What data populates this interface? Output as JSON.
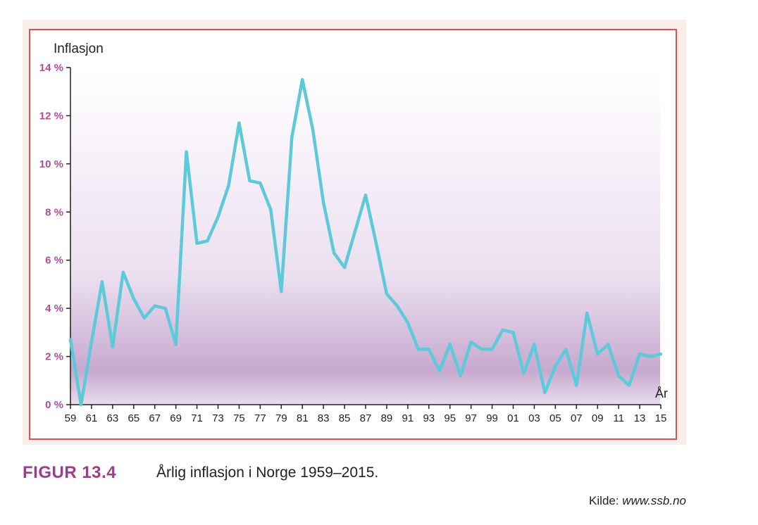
{
  "figure": {
    "label": "FIGUR 13.4",
    "caption": "Årlig inflasjon i Norge 1959–2015.",
    "source_prefix": "Kilde: ",
    "source_url": "www.ssb.no"
  },
  "colors": {
    "line": "#5ec9d9",
    "frame_border": "#d9534f",
    "frame_bg": "#fbeeea",
    "gradient_top": "#ffffff",
    "gradient_bottom": "#c7a9cf",
    "ytick": "#b04b9c",
    "figure_label": "#9b3f8c"
  },
  "chart_data": {
    "type": "line",
    "title": "",
    "ylabel": "Inflasjon",
    "xlabel": "År",
    "ylim": [
      0,
      14
    ],
    "xlim": [
      1959,
      2015
    ],
    "grid": false,
    "yticks": [
      0,
      2,
      4,
      6,
      8,
      10,
      12,
      14
    ],
    "ytick_labels": [
      "0 %",
      "2 %",
      "4 %",
      "6 %",
      "8 %",
      "10 %",
      "12 %",
      "14 %"
    ],
    "xtick_years": [
      1959,
      1961,
      1963,
      1965,
      1967,
      1969,
      1971,
      1973,
      1975,
      1977,
      1979,
      1981,
      1983,
      1985,
      1987,
      1989,
      1991,
      1993,
      1995,
      1997,
      1999,
      2001,
      2003,
      2005,
      2007,
      2009,
      2011,
      2013,
      2015
    ],
    "xtick_labels": [
      "59",
      "61",
      "63",
      "65",
      "67",
      "69",
      "71",
      "73",
      "75",
      "77",
      "79",
      "81",
      "83",
      "85",
      "87",
      "89",
      "91",
      "93",
      "95",
      "97",
      "99",
      "01",
      "03",
      "05",
      "07",
      "09",
      "11",
      "13",
      "15"
    ],
    "series": [
      {
        "x": [
          1959,
          1960,
          1961,
          1962,
          1963,
          1964,
          1965,
          1966,
          1967,
          1968,
          1969,
          1970,
          1971,
          1972,
          1973,
          1974,
          1975,
          1976,
          1977,
          1978,
          1979,
          1980,
          1981,
          1982,
          1983,
          1984,
          1985,
          1986,
          1987,
          1988,
          1989,
          1990,
          1991,
          1992,
          1993,
          1994,
          1995,
          1996,
          1997,
          1998,
          1999,
          2000,
          2001,
          2002,
          2003,
          2004,
          2005,
          2006,
          2007,
          2008,
          2009,
          2010,
          2011,
          2012,
          2013,
          2014,
          2015
        ],
        "values": [
          2.7,
          0.0,
          2.6,
          5.1,
          2.4,
          5.5,
          4.4,
          3.6,
          4.1,
          4.0,
          2.5,
          10.5,
          6.7,
          6.8,
          7.8,
          9.1,
          11.7,
          9.3,
          9.2,
          8.1,
          4.7,
          11.1,
          13.5,
          11.4,
          8.4,
          6.3,
          5.7,
          7.2,
          8.7,
          6.7,
          4.6,
          4.1,
          3.4,
          2.3,
          2.3,
          1.4,
          2.5,
          1.2,
          2.6,
          2.3,
          2.3,
          3.1,
          3.0,
          1.3,
          2.5,
          0.5,
          1.6,
          2.3,
          0.8,
          3.8,
          2.1,
          2.5,
          1.2,
          0.8,
          2.1,
          2.0,
          2.1
        ]
      }
    ]
  }
}
